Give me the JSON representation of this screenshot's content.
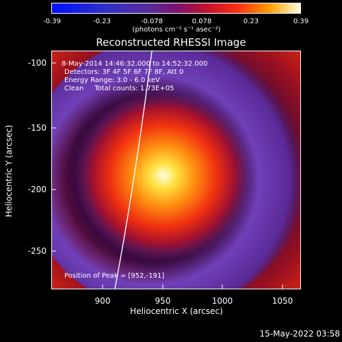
{
  "colorbar": {
    "ticks": [
      "-0.39",
      "-0.23",
      "-0.078",
      "0.078",
      "0.23",
      "0.39"
    ],
    "unit": "(photons cm⁻² s⁻¹ asec⁻²)"
  },
  "title": "Reconstructed RHESSI Image",
  "annotations": {
    "time": "8-May-2014 14:46:32.000 to 14:52:32.000",
    "detectors": "Detectors: 3F 4F 5F 6F 7F 8F, Att 0",
    "energy": "Energy Range: 3.0 - 6.0 keV",
    "clean": "Clean     Total counts: 1.73E+05",
    "peak": "Position of Peak = [952,-191]"
  },
  "axes": {
    "xlabel": "Heliocentric X (arcsec)",
    "ylabel": "Heliocentric Y (arcsec)",
    "xticks": [
      "900",
      "950",
      "1000",
      "1050"
    ],
    "yticks": [
      "-100",
      "-150",
      "-200",
      "-250"
    ]
  },
  "footer": "15-May-2022 03:58"
}
